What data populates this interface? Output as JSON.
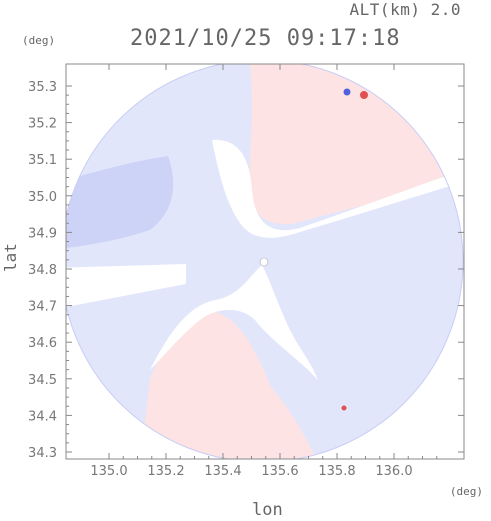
{
  "header": {
    "altitude": "ALT(km) 2.0",
    "datetime": "2021/10/25 09:17:18"
  },
  "axes": {
    "y_unit": "(deg)",
    "x_unit": "(deg)",
    "ylabel": "lat",
    "xlabel": "lon",
    "x_ticks": [
      "135.0",
      "135.2",
      "135.4",
      "135.6",
      "135.8",
      "136.0"
    ],
    "y_ticks": [
      "35.3",
      "35.2",
      "35.1",
      "35.0",
      "34.9",
      "34.8",
      "34.7",
      "34.6",
      "34.5",
      "34.4",
      "34.3"
    ]
  },
  "map": {
    "colors": {
      "positive": "#fde3e3",
      "negative_light": "#e2e6fb",
      "negative_mid": "#cdd3f6",
      "negative_strong": "#b3b9ef",
      "white_band": "#ffffff",
      "frame": "#888888"
    }
  }
}
